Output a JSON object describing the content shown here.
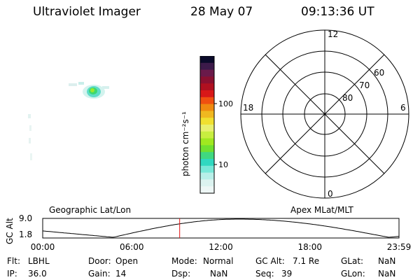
{
  "header": {
    "instrument": "Ultraviolet Imager",
    "date": "28 May 07",
    "time": "09:13:36 UT"
  },
  "colorbar": {
    "unit_label": "photon cm⁻²s⁻¹",
    "tick_labels": [
      "100",
      "10"
    ],
    "colors": [
      "#0a0a2a",
      "#3c1a4a",
      "#6a1a4a",
      "#8a1030",
      "#b01020",
      "#d81818",
      "#f05010",
      "#f08a10",
      "#f0b820",
      "#f0e030",
      "#e8f070",
      "#c8ee40",
      "#a0e820",
      "#70e030",
      "#40d880",
      "#30d8c0",
      "#78e8d8",
      "#b8efe8",
      "#dcf3f0",
      "#eef7f6"
    ]
  },
  "polar_grid": {
    "mlt_labels": {
      "top": "12",
      "bottom": "0",
      "left": "18",
      "right": "6"
    },
    "lat_labels": [
      "60",
      "70",
      "80"
    ]
  },
  "orbit_plot": {
    "left_title": "Geographic Lat/Lon",
    "right_title": "Apex MLat/MLT",
    "ylabel": "GC Alt",
    "y_ticks": [
      "9.0",
      "1.8"
    ],
    "x_ticks": [
      "00:00",
      "06:00",
      "12:00",
      "18:00",
      "23:59"
    ],
    "marker_color": "#e01010"
  },
  "info": {
    "row1": [
      {
        "label": "Flt:",
        "value": "LBHL"
      },
      {
        "label": "Door:",
        "value": "Open"
      },
      {
        "label": "Mode:",
        "value": "Normal"
      },
      {
        "label": "GC Alt:",
        "value": "7.1 Re"
      },
      {
        "label": "GLat:",
        "value": "NaN"
      }
    ],
    "row2": [
      {
        "label": "IP:",
        "value": "36.0"
      },
      {
        "label": "Gain:",
        "value": "14"
      },
      {
        "label": "Dsp:",
        "value": "NaN"
      },
      {
        "label": "Seq:",
        "value": "39"
      },
      {
        "label": "GLon:",
        "value": "NaN"
      }
    ]
  }
}
